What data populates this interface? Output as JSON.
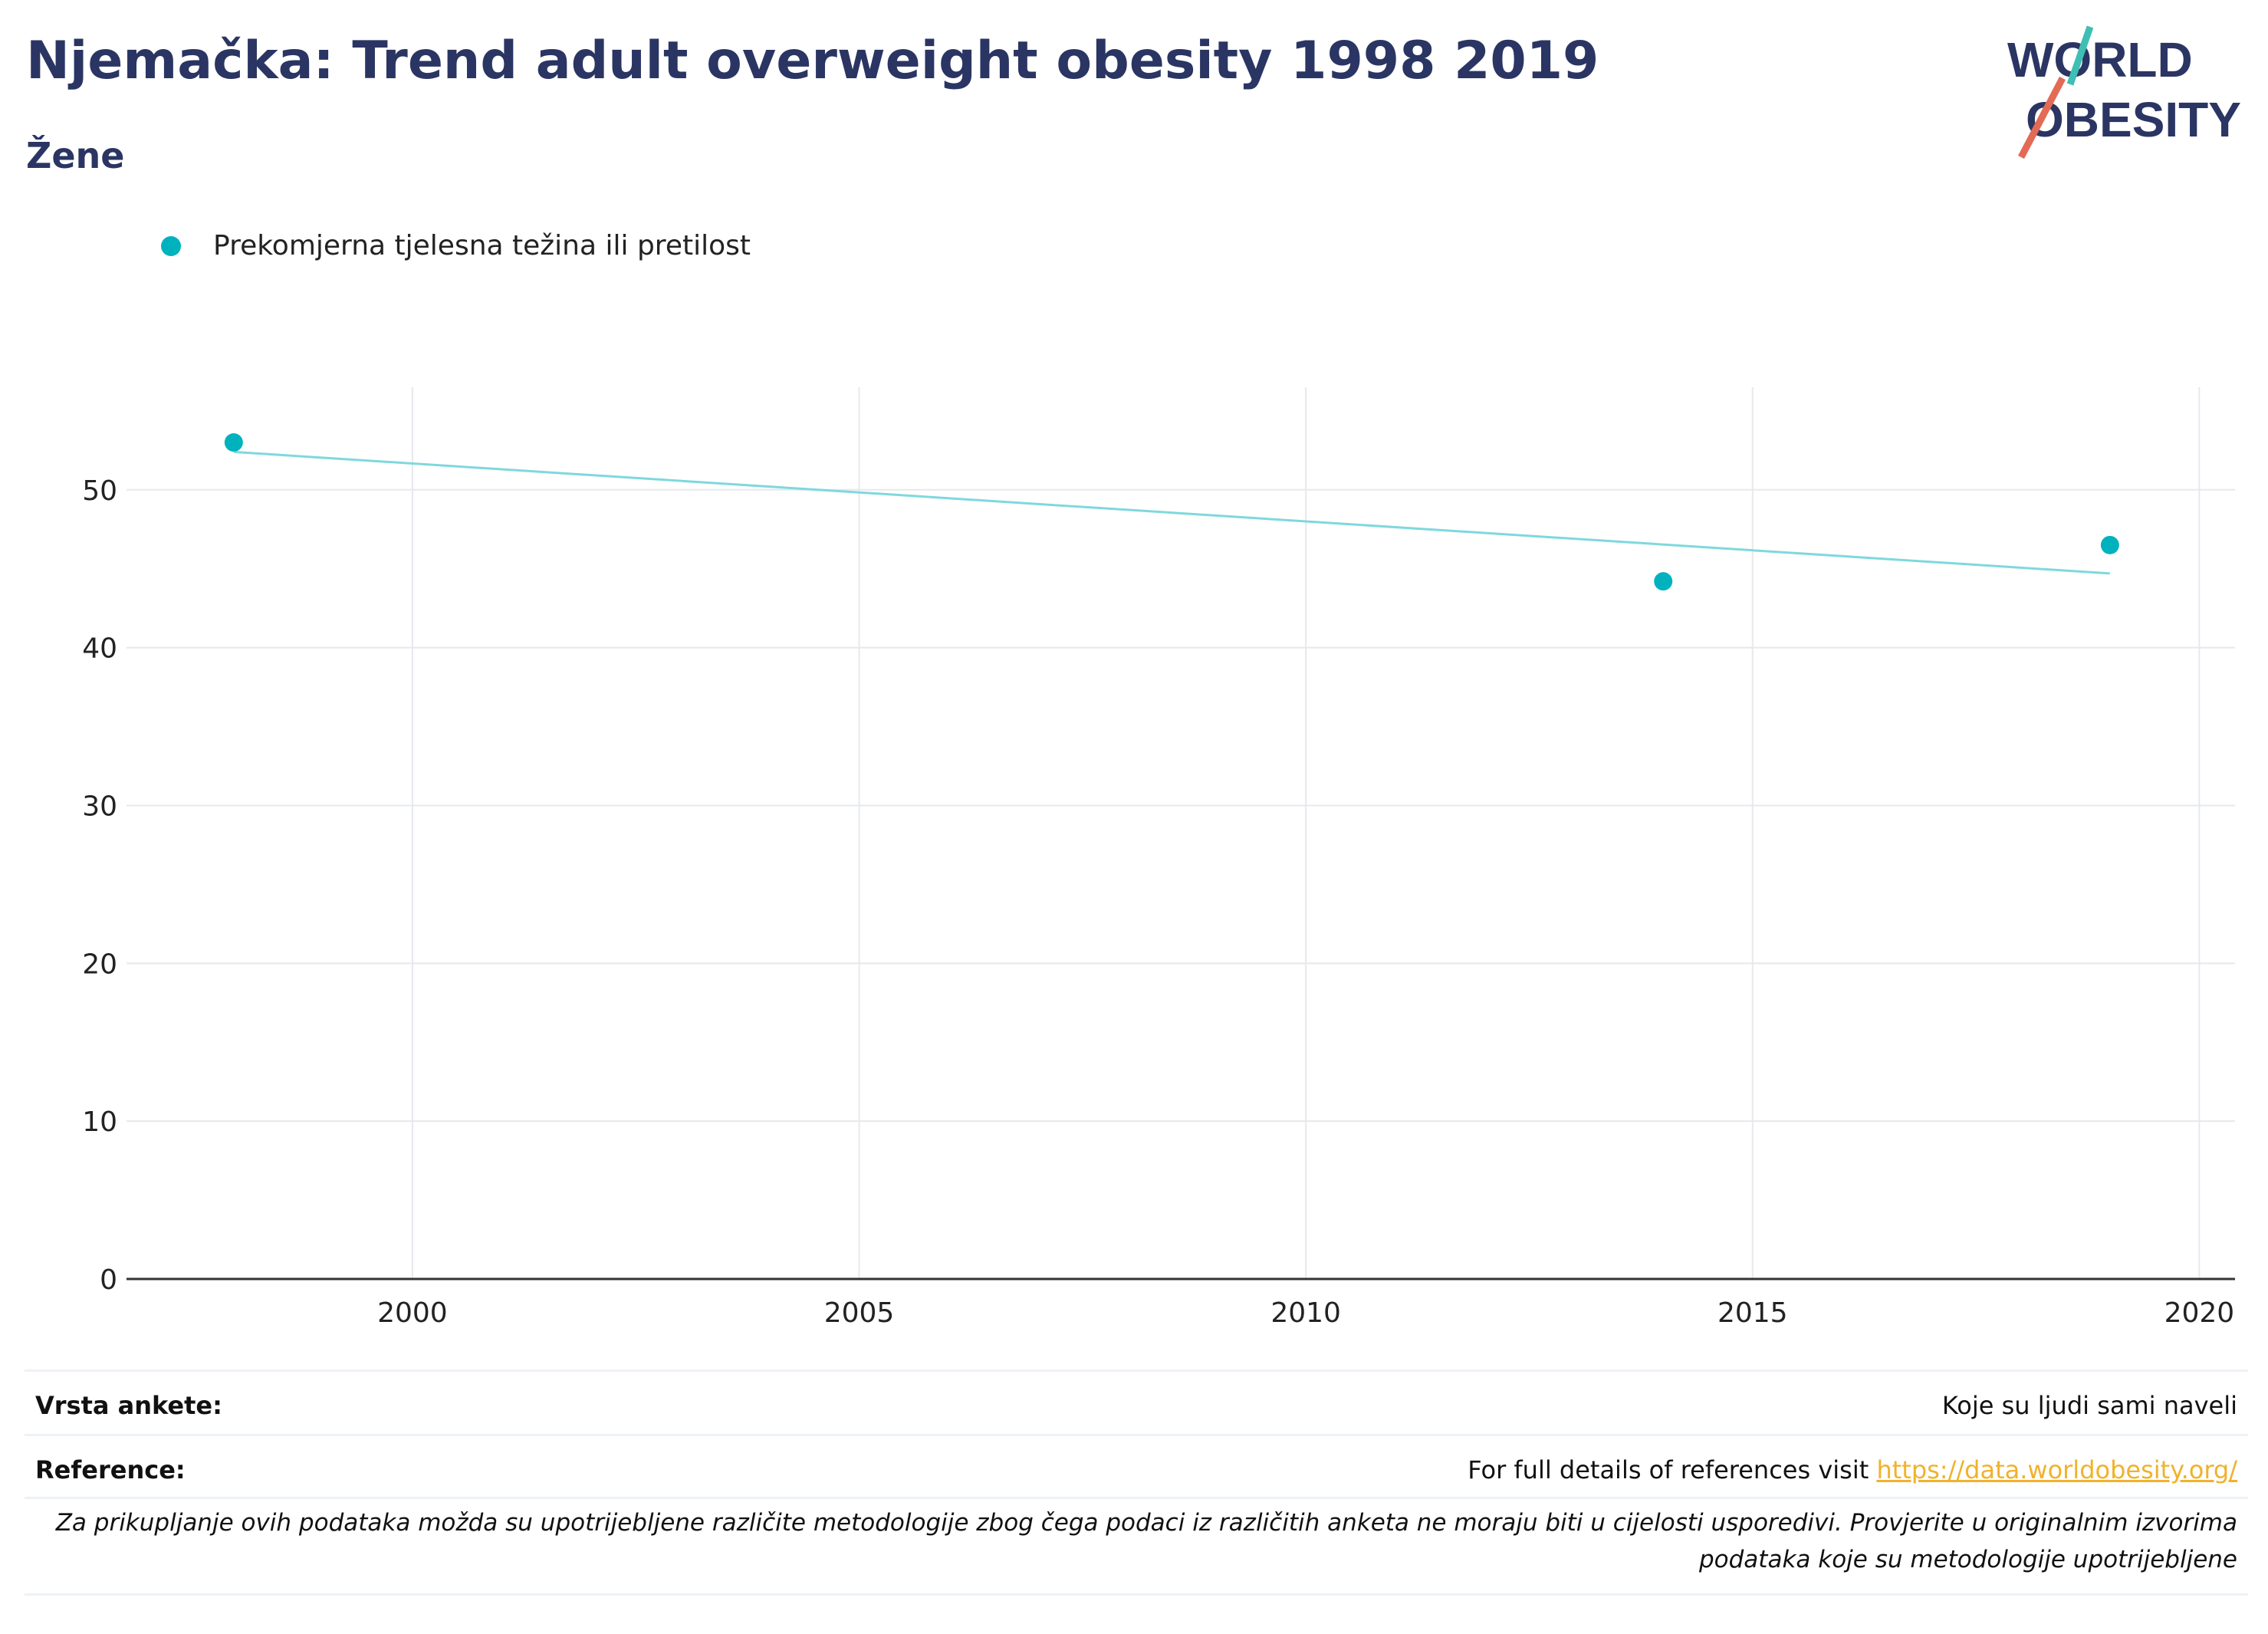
{
  "header": {
    "title": "Njemačka: Trend adult overweight obesity 1998 2019",
    "subtitle": "Žene"
  },
  "logo": {
    "line1": "WORLD",
    "line2": "OBESITY"
  },
  "colors": {
    "series": "#00b2be",
    "trend": "#7fd8dd",
    "title": "#2a3563",
    "link": "#f0b22c"
  },
  "chart_data": {
    "type": "scatter",
    "series": [
      {
        "name": "Prekomjerna tjelesna težina ili pretilost",
        "x": [
          1998,
          2014,
          2019
        ],
        "y": [
          53.0,
          44.2,
          46.5
        ]
      }
    ],
    "trendline": {
      "x": [
        1998,
        2019
      ],
      "y": [
        52.4,
        44.7
      ]
    },
    "xlim": [
      1996.8,
      2020.4
    ],
    "ylim": [
      0,
      56.5
    ],
    "xticks": [
      2000,
      2005,
      2010,
      2015,
      2020
    ],
    "yticks": [
      0,
      10,
      20,
      30,
      40,
      50
    ],
    "grid": true,
    "legend_position": "top-left"
  },
  "footer": {
    "survey_label": "Vrsta ankete:",
    "survey_value": "Koje su ljudi sami naveli",
    "reference_label": "Reference:",
    "reference_text": "For full details of references visit ",
    "reference_link": "https://data.worldobesity.org/",
    "note": "Za prikupljanje ovih podataka možda su upotrijebljene različite metodologije zbog čega podaci iz različitih anketa ne moraju biti u cijelosti usporedivi. Provjerite u originalnim izvorima podataka koje su metodologije upotrijebljene"
  }
}
